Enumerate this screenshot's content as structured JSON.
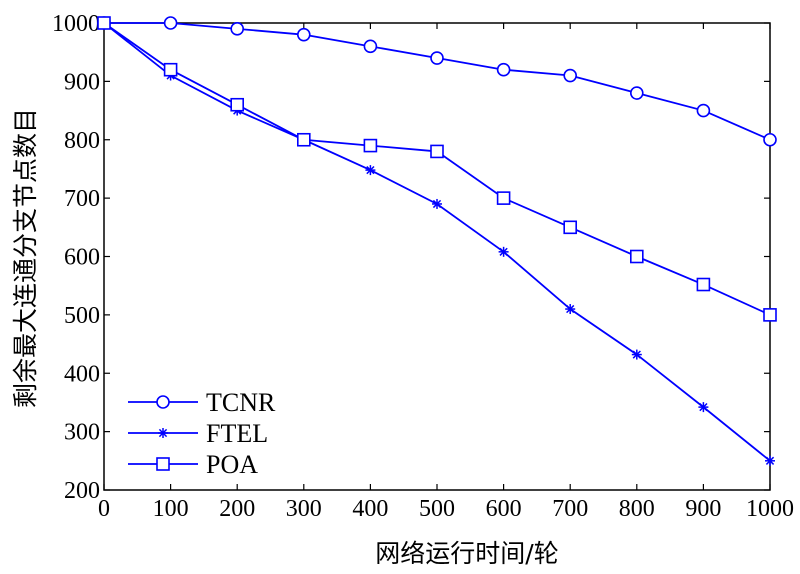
{
  "chart_data": {
    "type": "line",
    "xlabel": "网络运行时间/轮",
    "ylabel": "剩余最大连通分支节点数目",
    "xlim": [
      0,
      1000
    ],
    "ylim": [
      200,
      1000
    ],
    "xticks": [
      0,
      100,
      200,
      300,
      400,
      500,
      600,
      700,
      800,
      900,
      1000
    ],
    "yticks": [
      200,
      300,
      400,
      500,
      600,
      700,
      800,
      900,
      1000
    ],
    "x": [
      0,
      100,
      200,
      300,
      400,
      500,
      600,
      700,
      800,
      900,
      1000
    ],
    "grid": false,
    "legend_position": "bottom-left",
    "line_color": "#0000ff",
    "series": [
      {
        "name": "TCNR",
        "marker": "circle",
        "values": [
          1000,
          1000,
          990,
          980,
          960,
          940,
          920,
          910,
          880,
          850,
          800
        ]
      },
      {
        "name": "FTEL",
        "marker": "asterisk",
        "values": [
          1000,
          910,
          850,
          800,
          748,
          690,
          608,
          510,
          432,
          342,
          250
        ]
      },
      {
        "name": "POA",
        "marker": "square",
        "values": [
          1000,
          920,
          860,
          800,
          790,
          780,
          700,
          650,
          600,
          552,
          500
        ]
      }
    ]
  }
}
